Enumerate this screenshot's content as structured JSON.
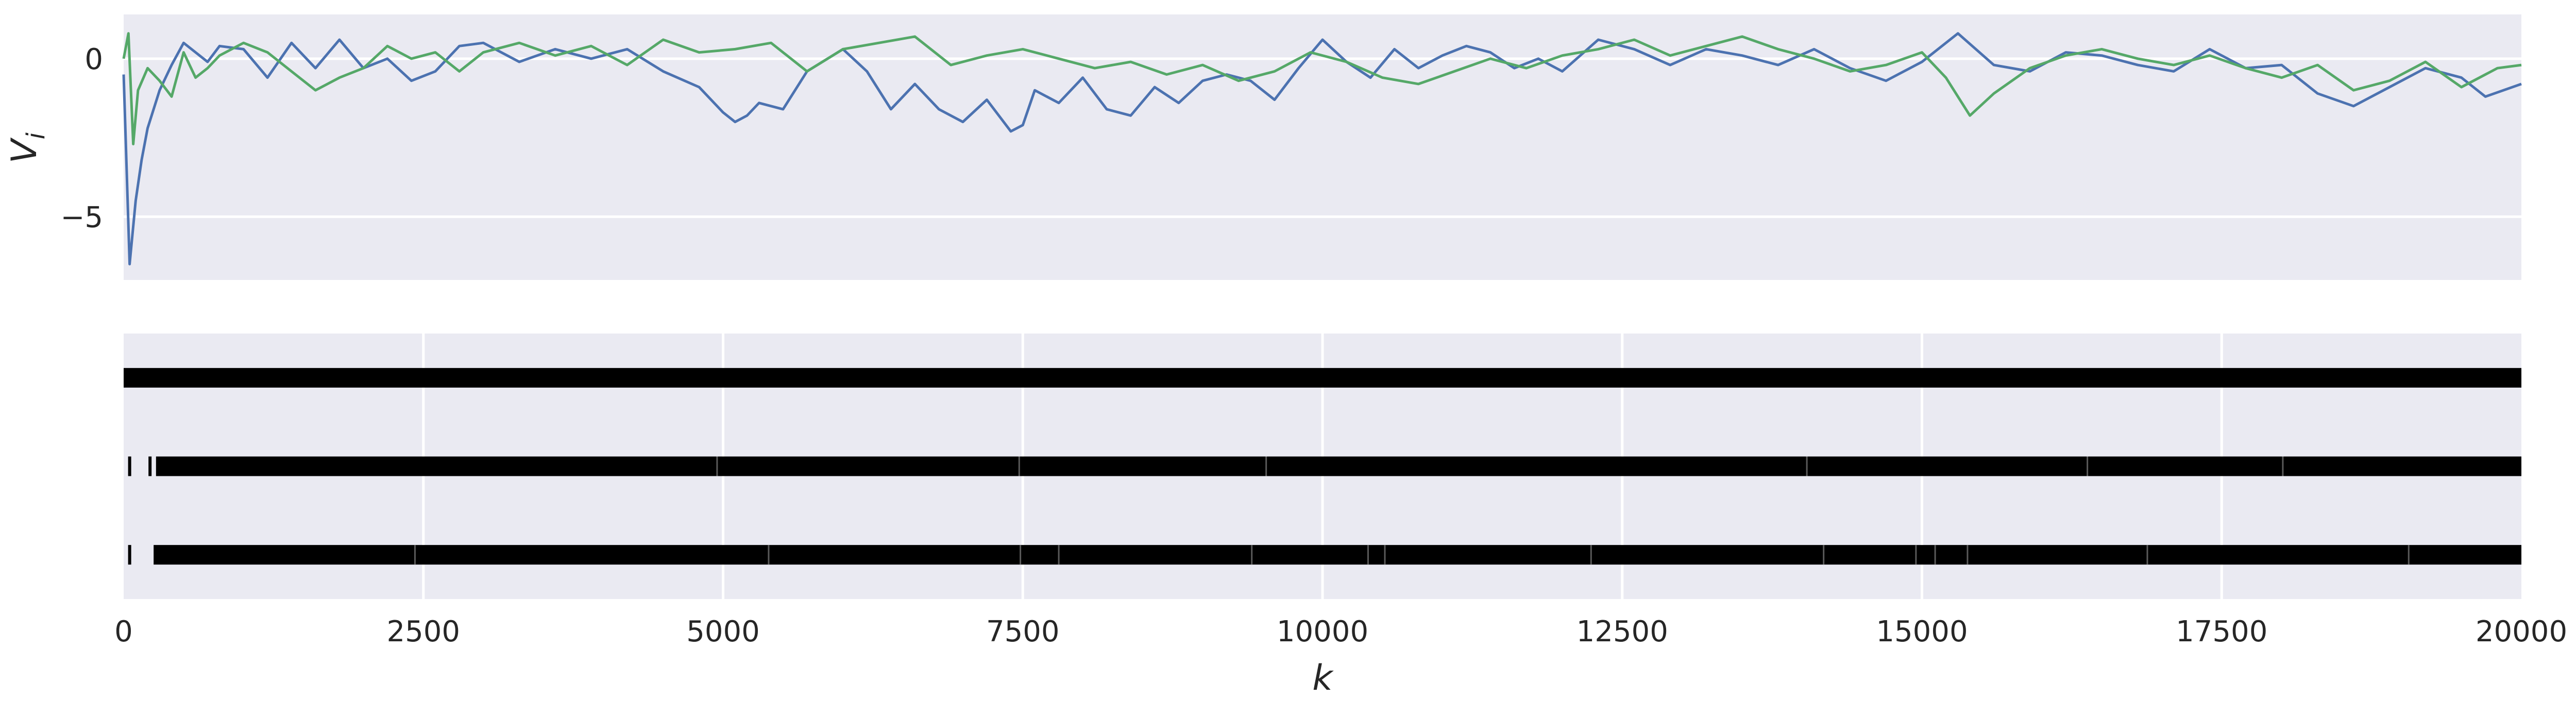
{
  "chart_data": [
    {
      "type": "line",
      "title": "",
      "xlabel": "",
      "ylabel": "V",
      "ylabel_subscript": "i",
      "xlim": [
        0,
        20000
      ],
      "ylim": [
        -7,
        1.4
      ],
      "yticks": [
        0,
        -5
      ],
      "ytick_labels": [
        "0",
        "−5"
      ],
      "grid": true,
      "legend": "none",
      "series_colors": [
        "#4c72b0",
        "#55a868"
      ],
      "series": [
        {
          "x": [
            0,
            50,
            100,
            150,
            200,
            300,
            400,
            500,
            600,
            700,
            800,
            1000,
            1200,
            1400,
            1600,
            1800,
            2000,
            2200,
            2400,
            2600,
            2800,
            3000,
            3300,
            3600,
            3900,
            4200,
            4500,
            4800,
            5000,
            5100,
            5200,
            5300,
            5500,
            5700,
            6000,
            6200,
            6400,
            6600,
            6800,
            7000,
            7200,
            7400,
            7500,
            7600,
            7800,
            8000,
            8200,
            8400,
            8600,
            8800,
            9000,
            9200,
            9400,
            9600,
            9800,
            10000,
            10200,
            10400,
            10600,
            10800,
            11000,
            11200,
            11400,
            11600,
            11800,
            12000,
            12300,
            12600,
            12900,
            13200,
            13500,
            13800,
            14100,
            14400,
            14700,
            15000,
            15300,
            15600,
            15900,
            16200,
            16500,
            16800,
            17100,
            17400,
            17700,
            18000,
            18300,
            18600,
            18900,
            19200,
            19500,
            19700,
            20000
          ],
          "y": [
            -0.5,
            -6.5,
            -4.5,
            -3.2,
            -2.2,
            -1.0,
            -0.2,
            0.5,
            0.2,
            -0.1,
            0.4,
            0.3,
            -0.6,
            0.5,
            -0.3,
            0.6,
            -0.3,
            0.0,
            -0.7,
            -0.4,
            0.4,
            0.5,
            -0.1,
            0.3,
            0.0,
            0.3,
            -0.4,
            -0.9,
            -1.7,
            -2.0,
            -1.8,
            -1.4,
            -1.6,
            -0.4,
            0.3,
            -0.4,
            -1.6,
            -0.8,
            -1.6,
            -2.0,
            -1.3,
            -2.3,
            -2.1,
            -1.0,
            -1.4,
            -0.6,
            -1.6,
            -1.8,
            -0.9,
            -1.4,
            -0.7,
            -0.5,
            -0.7,
            -1.3,
            -0.3,
            0.6,
            -0.1,
            -0.6,
            0.3,
            -0.3,
            0.1,
            0.4,
            0.2,
            -0.3,
            0.0,
            -0.4,
            0.6,
            0.3,
            -0.2,
            0.3,
            0.1,
            -0.2,
            0.3,
            -0.3,
            -0.7,
            -0.1,
            0.8,
            -0.2,
            -0.4,
            0.2,
            0.1,
            -0.2,
            -0.4,
            0.3,
            -0.3,
            -0.2,
            -1.1,
            -1.5,
            -0.9,
            -0.3,
            -0.6,
            -1.2,
            -0.8
          ]
        },
        {
          "x": [
            0,
            40,
            80,
            120,
            200,
            300,
            400,
            500,
            600,
            700,
            800,
            1000,
            1200,
            1400,
            1600,
            1800,
            2000,
            2200,
            2400,
            2600,
            2800,
            3000,
            3300,
            3600,
            3900,
            4200,
            4500,
            4800,
            5100,
            5400,
            5700,
            6000,
            6300,
            6600,
            6900,
            7200,
            7500,
            7800,
            8100,
            8400,
            8700,
            9000,
            9300,
            9600,
            9900,
            10200,
            10500,
            10800,
            11100,
            11400,
            11700,
            12000,
            12300,
            12600,
            12900,
            13200,
            13500,
            13800,
            14100,
            14400,
            14700,
            15000,
            15200,
            15400,
            15600,
            15900,
            16200,
            16500,
            16800,
            17100,
            17400,
            17700,
            18000,
            18300,
            18600,
            18900,
            19200,
            19500,
            19800,
            20000
          ],
          "y": [
            0.0,
            0.8,
            -2.7,
            -1.0,
            -0.3,
            -0.7,
            -1.2,
            0.2,
            -0.6,
            -0.3,
            0.1,
            0.5,
            0.2,
            -0.4,
            -1.0,
            -0.6,
            -0.3,
            0.4,
            0.0,
            0.2,
            -0.4,
            0.2,
            0.5,
            0.1,
            0.4,
            -0.2,
            0.6,
            0.2,
            0.3,
            0.5,
            -0.4,
            0.3,
            0.5,
            0.7,
            -0.2,
            0.1,
            0.3,
            0.0,
            -0.3,
            -0.1,
            -0.5,
            -0.2,
            -0.7,
            -0.4,
            0.2,
            -0.1,
            -0.6,
            -0.8,
            -0.4,
            0.0,
            -0.3,
            0.1,
            0.3,
            0.6,
            0.1,
            0.4,
            0.7,
            0.3,
            0.0,
            -0.4,
            -0.2,
            0.2,
            -0.6,
            -1.8,
            -1.1,
            -0.3,
            0.1,
            0.3,
            0.0,
            -0.2,
            0.1,
            -0.3,
            -0.6,
            -0.2,
            -1.0,
            -0.7,
            -0.1,
            -0.9,
            -0.3,
            -0.2
          ]
        }
      ]
    },
    {
      "type": "event-raster",
      "title": "",
      "xlabel": "k",
      "ylabel": "",
      "xlim": [
        0,
        20000
      ],
      "xticks": [
        0,
        2500,
        5000,
        7500,
        10000,
        12500,
        15000,
        17500,
        20000
      ],
      "xtick_labels": [
        "0",
        "2500",
        "5000",
        "7500",
        "10000",
        "12500",
        "15000",
        "17500",
        "20000"
      ],
      "grid": true,
      "legend": "none",
      "mark_color": "#000000",
      "rows": [
        {
          "ticks": [],
          "bands": [
            [
              0,
              20000
            ]
          ]
        },
        {
          "ticks": [
            50,
            220
          ],
          "bands": [
            [
              270,
              20000
            ]
          ],
          "band_gaps": [
            4950,
            7470,
            9530,
            14040,
            16380,
            18010
          ]
        },
        {
          "ticks": [
            50
          ],
          "bands": [
            [
              250,
              20000
            ]
          ],
          "band_gaps": [
            2430,
            5380,
            7480,
            7800,
            9410,
            10380,
            10520,
            12240,
            14180,
            14950,
            15110,
            15380,
            16880,
            19060
          ]
        }
      ]
    }
  ]
}
